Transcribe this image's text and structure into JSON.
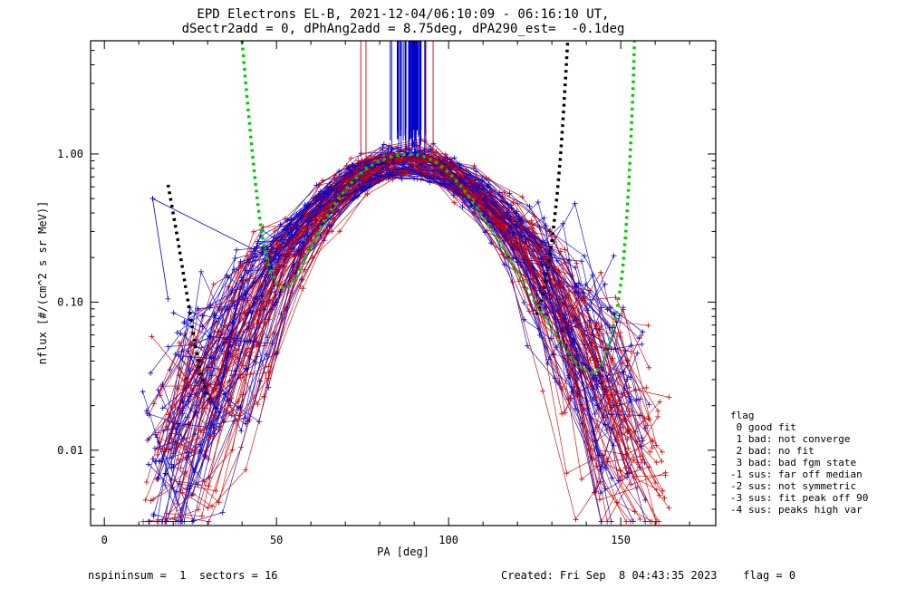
{
  "title_line1": "EPD Electrons EL-B, 2021-12-04/06:10:09 - 06:16:10 UT,",
  "title_line2": "dSectr2add = 0, dPhAng2add = 8.75deg, dPA290_est=  -0.1deg",
  "colors": {
    "red": "#cc0000",
    "blue": "#0000cc",
    "green": "#00cc00",
    "black": "#000000"
  },
  "flag_legend": {
    "title": "flag",
    "items": [
      " 0 good fit",
      " 1 bad: not converge",
      " 2 bad: no fit",
      " 3 bad: bad fgm state",
      "-1 sus: far off median",
      "-2 sus: not symmetric",
      "-3 sus: fit peak off 90",
      "-4 sus: peaks high var"
    ]
  },
  "footer": {
    "left": "nspininsum =  1  sectors = 16",
    "right": "Created: Fri Sep  8 04:43:35 2023    flag = 0"
  },
  "chart_data": {
    "type": "line",
    "title": "EPD Electrons EL-B, 2021-12-04/06:10:09 - 06:16:10 UT,",
    "xlabel": "PA [deg]",
    "ylabel": "nflux [#/(cm^2 s sr MeV)]",
    "x_range": [
      -4,
      177.6
    ],
    "y_range": [
      0.0031,
      5.81
    ],
    "y_log": true,
    "x_ticks": [
      0,
      50,
      100,
      150
    ],
    "x_minor_step": 10,
    "y_ticks": [
      {
        "v": 1.0,
        "label": "1.00"
      },
      {
        "v": 0.1,
        "label": "0.10"
      },
      {
        "v": 0.01,
        "label": "0.01"
      }
    ],
    "ensemble": {
      "seed": 20211204,
      "points_per_curve": 16,
      "pa_start_base": 12,
      "pa_start_spread": 12,
      "center": 88,
      "center_spread": 5,
      "sigma_base": 16.5,
      "sigma_spread": 8,
      "amp_base": 0.72,
      "amp_spread": 0.33,
      "floor_log_base": -2.65,
      "floor_log_spread": 0.95,
      "scatter_base": 0.04,
      "scatter_low_extra": 0.3,
      "peak_flux": 1.0,
      "peak_pa": 90,
      "groups": [
        {
          "color": "blue",
          "n": 55,
          "pa_end_base": 144,
          "pa_end_spread": 14
        },
        {
          "color": "red",
          "n": 55,
          "pa_end_base": 150,
          "pa_end_spread": 14
        }
      ]
    },
    "vertical_lines": {
      "seed": 42,
      "blue": {
        "n_core": 28,
        "core_min": 87,
        "core_span": 5,
        "n_outer": 22,
        "outer_min": 83,
        "outer_span": 12,
        "v_base": 1.0,
        "v_spread": 0.5
      },
      "red_pas": [
        74.5,
        76,
        93.4,
        95.5
      ],
      "red_v0": 0.95
    },
    "outliers": [
      {
        "color": "blue",
        "points": [
          [
            14,
            0.5
          ],
          [
            48,
            0.2
          ],
          [
            50,
            0.1
          ]
        ]
      },
      {
        "color": "blue",
        "points": [
          [
            14,
            0.5
          ],
          [
            18.5,
            0.105
          ]
        ]
      }
    ],
    "fits": {
      "green": [
        [
          40,
          5.8
        ],
        [
          41,
          3.1
        ],
        [
          42,
          1.75
        ],
        [
          43,
          1.0
        ],
        [
          44,
          0.6
        ],
        [
          45,
          0.38
        ],
        [
          46,
          0.27
        ],
        [
          47,
          0.21
        ],
        [
          48,
          0.17
        ],
        [
          50,
          0.135
        ],
        [
          52,
          0.124
        ],
        [
          54,
          0.13
        ],
        [
          56,
          0.15
        ],
        [
          58,
          0.19
        ],
        [
          61,
          0.26
        ],
        [
          64,
          0.36
        ],
        [
          68,
          0.5
        ],
        [
          72,
          0.65
        ],
        [
          76,
          0.8
        ],
        [
          80,
          0.9
        ],
        [
          84,
          0.97
        ],
        [
          88,
          1.0
        ],
        [
          92,
          0.98
        ],
        [
          96,
          0.89
        ],
        [
          100,
          0.75
        ],
        [
          104,
          0.59
        ],
        [
          108,
          0.44
        ],
        [
          112,
          0.32
        ],
        [
          116,
          0.23
        ],
        [
          120,
          0.16
        ],
        [
          124,
          0.11
        ],
        [
          128,
          0.078
        ],
        [
          132,
          0.056
        ],
        [
          135,
          0.044
        ],
        [
          138,
          0.037
        ],
        [
          141,
          0.033
        ],
        [
          143,
          0.034
        ],
        [
          145,
          0.04
        ],
        [
          147,
          0.055
        ],
        [
          149,
          0.09
        ],
        [
          150.5,
          0.16
        ],
        [
          151.5,
          0.3
        ],
        [
          152.3,
          0.6
        ],
        [
          153,
          1.3
        ],
        [
          153.6,
          2.8
        ],
        [
          154,
          5.8
        ]
      ],
      "black_left": [
        [
          18.5,
          0.62
        ],
        [
          19.5,
          0.46
        ],
        [
          20.5,
          0.34
        ],
        [
          21.5,
          0.25
        ],
        [
          22.5,
          0.18
        ],
        [
          23.5,
          0.13
        ],
        [
          24.5,
          0.095
        ],
        [
          25.5,
          0.068
        ],
        [
          26.5,
          0.05
        ],
        [
          27.5,
          0.038
        ],
        [
          28.5,
          0.03
        ],
        [
          29.5,
          0.025
        ],
        [
          30.5,
          0.022
        ]
      ],
      "black_right": [
        [
          125.5,
          0.082
        ],
        [
          126.5,
          0.095
        ],
        [
          127.5,
          0.115
        ],
        [
          128.5,
          0.15
        ],
        [
          129.5,
          0.21
        ],
        [
          130.5,
          0.32
        ],
        [
          131.5,
          0.52
        ],
        [
          132.5,
          0.95
        ],
        [
          133.3,
          1.8
        ],
        [
          134,
          3.3
        ],
        [
          134.6,
          5.8
        ]
      ]
    }
  }
}
